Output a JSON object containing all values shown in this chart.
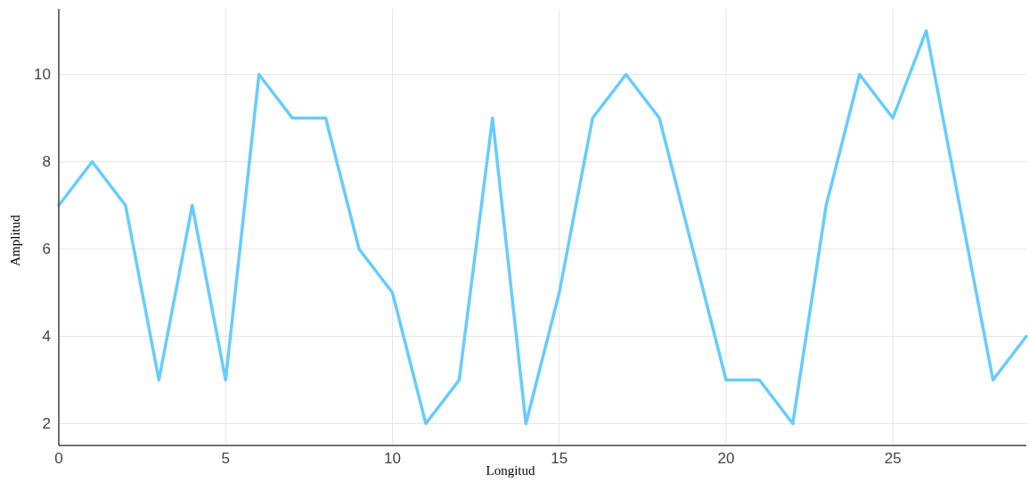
{
  "chart_data": {
    "type": "line",
    "xlabel": "Longitud",
    "ylabel": "Amplitud",
    "x": [
      0,
      1,
      2,
      3,
      4,
      5,
      6,
      7,
      8,
      9,
      10,
      11,
      12,
      13,
      14,
      15,
      16,
      17,
      18,
      19,
      20,
      21,
      22,
      23,
      24,
      25,
      26,
      27,
      28,
      29
    ],
    "series": [
      {
        "color": "#66ccff",
        "values": [
          7,
          8,
          7,
          3,
          7,
          3,
          10,
          9,
          9,
          6,
          5,
          2,
          3,
          9,
          2,
          5,
          9,
          10,
          9,
          6,
          3,
          3,
          2,
          7,
          10,
          9,
          11,
          7,
          3,
          4
        ]
      }
    ],
    "xlim": [
      0,
      29
    ],
    "xticks": [
      0,
      5,
      10,
      15,
      20,
      25
    ],
    "ylim": [
      1.5,
      11.5
    ],
    "yticks": [
      2,
      4,
      6,
      8,
      10
    ],
    "grid": true,
    "marker": "none",
    "line_style": "solid"
  }
}
